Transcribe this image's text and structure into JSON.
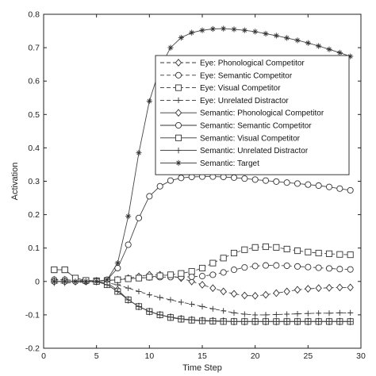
{
  "chart_data": {
    "type": "line",
    "xlabel": "Time Step",
    "ylabel": "Activation",
    "xlim": [
      0,
      30
    ],
    "ylim": [
      -0.2,
      0.8
    ],
    "xticks": [
      "0",
      "5",
      "10",
      "15",
      "20",
      "25",
      "30"
    ],
    "yticks": [
      "-0.2",
      "-0.1",
      "0",
      "0.1",
      "0.2",
      "0.3",
      "0.4",
      "0.5",
      "0.6",
      "0.7",
      "0.8"
    ],
    "legend_position": "top-right",
    "x": [
      1,
      2,
      3,
      4,
      5,
      6,
      7,
      8,
      9,
      10,
      11,
      12,
      13,
      14,
      15,
      16,
      17,
      18,
      19,
      20,
      21,
      22,
      23,
      24,
      25,
      26,
      27,
      28,
      29
    ],
    "series": [
      {
        "name": "Eye: Phonological Competitor",
        "line": "dashed",
        "marker": "diamond",
        "values": [
          0.005,
          0.005,
          0.003,
          0.002,
          0.002,
          0.003,
          0.005,
          0.01,
          0.015,
          0.02,
          0.02,
          0.017,
          0.01,
          0.0,
          -0.01,
          -0.02,
          -0.03,
          -0.037,
          -0.042,
          -0.043,
          -0.04,
          -0.035,
          -0.03,
          -0.025,
          -0.022,
          -0.02,
          -0.019,
          -0.018,
          -0.018
        ]
      },
      {
        "name": "Eye: Semantic Competitor",
        "line": "dashed",
        "marker": "circle",
        "values": [
          0.005,
          0.005,
          0.003,
          0.002,
          0.002,
          0.003,
          0.005,
          0.008,
          0.01,
          0.012,
          0.013,
          0.013,
          0.013,
          0.014,
          0.016,
          0.02,
          0.027,
          0.035,
          0.042,
          0.046,
          0.048,
          0.048,
          0.047,
          0.045,
          0.043,
          0.041,
          0.039,
          0.037,
          0.036
        ]
      },
      {
        "name": "Eye: Visual Competitor",
        "line": "dashed",
        "marker": "square",
        "values": [
          0.035,
          0.035,
          0.01,
          0.003,
          0.002,
          0.003,
          0.005,
          0.008,
          0.01,
          0.013,
          0.017,
          0.02,
          0.024,
          0.03,
          0.04,
          0.055,
          0.07,
          0.085,
          0.095,
          0.102,
          0.104,
          0.102,
          0.097,
          0.092,
          0.088,
          0.085,
          0.083,
          0.081,
          0.08
        ]
      },
      {
        "name": "Eye: Unrelated Distractor",
        "line": "dashed",
        "marker": "plus",
        "values": [
          -0.005,
          -0.005,
          -0.003,
          -0.002,
          -0.002,
          -0.004,
          -0.01,
          -0.02,
          -0.03,
          -0.04,
          -0.048,
          -0.055,
          -0.062,
          -0.068,
          -0.075,
          -0.082,
          -0.088,
          -0.094,
          -0.098,
          -0.1,
          -0.1,
          -0.099,
          -0.098,
          -0.097,
          -0.096,
          -0.095,
          -0.095,
          -0.094,
          -0.094
        ]
      },
      {
        "name": "Semantic: Phonological Competitor",
        "line": "solid",
        "marker": "diamond",
        "values": [
          0.0,
          0.0,
          0.0,
          0.0,
          0.0,
          -0.005,
          -0.025,
          -0.055,
          -0.075,
          -0.09,
          -0.1,
          -0.107,
          -0.112,
          -0.115,
          -0.117,
          -0.118,
          -0.119,
          -0.12,
          -0.12,
          -0.12,
          -0.12,
          -0.12,
          -0.12,
          -0.12,
          -0.12,
          -0.12,
          -0.12,
          -0.12,
          -0.12
        ]
      },
      {
        "name": "Semantic: Semantic Competitor",
        "line": "solid",
        "marker": "circle",
        "values": [
          0.0,
          0.0,
          0.0,
          0.0,
          0.0,
          0.005,
          0.04,
          0.11,
          0.19,
          0.255,
          0.285,
          0.302,
          0.31,
          0.313,
          0.314,
          0.314,
          0.313,
          0.311,
          0.308,
          0.305,
          0.302,
          0.299,
          0.296,
          0.293,
          0.29,
          0.287,
          0.283,
          0.278,
          0.273
        ]
      },
      {
        "name": "Semantic: Visual Competitor",
        "line": "solid",
        "marker": "square",
        "values": [
          0.035,
          0.035,
          0.01,
          0.003,
          0.0,
          -0.01,
          -0.03,
          -0.055,
          -0.075,
          -0.09,
          -0.1,
          -0.108,
          -0.113,
          -0.116,
          -0.118,
          -0.119,
          -0.12,
          -0.12,
          -0.12,
          -0.12,
          -0.12,
          -0.12,
          -0.12,
          -0.12,
          -0.12,
          -0.12,
          -0.12,
          -0.12,
          -0.12
        ]
      },
      {
        "name": "Semantic: Unrelated Distractor",
        "line": "solid",
        "marker": "plus",
        "values": [
          0.0,
          0.0,
          0.0,
          0.0,
          0.0,
          -0.01,
          -0.03,
          -0.055,
          -0.075,
          -0.09,
          -0.1,
          -0.107,
          -0.112,
          -0.115,
          -0.117,
          -0.118,
          -0.119,
          -0.12,
          -0.12,
          -0.12,
          -0.12,
          -0.12,
          -0.12,
          -0.12,
          -0.12,
          -0.12,
          -0.12,
          -0.12,
          -0.12
        ]
      },
      {
        "name": "Semantic: Target",
        "line": "solid",
        "marker": "star",
        "values": [
          0.0,
          0.0,
          0.0,
          0.0,
          0.0,
          0.005,
          0.055,
          0.195,
          0.385,
          0.54,
          0.64,
          0.7,
          0.73,
          0.745,
          0.752,
          0.756,
          0.757,
          0.755,
          0.752,
          0.748,
          0.742,
          0.736,
          0.729,
          0.722,
          0.714,
          0.705,
          0.695,
          0.685,
          0.674
        ]
      }
    ]
  }
}
